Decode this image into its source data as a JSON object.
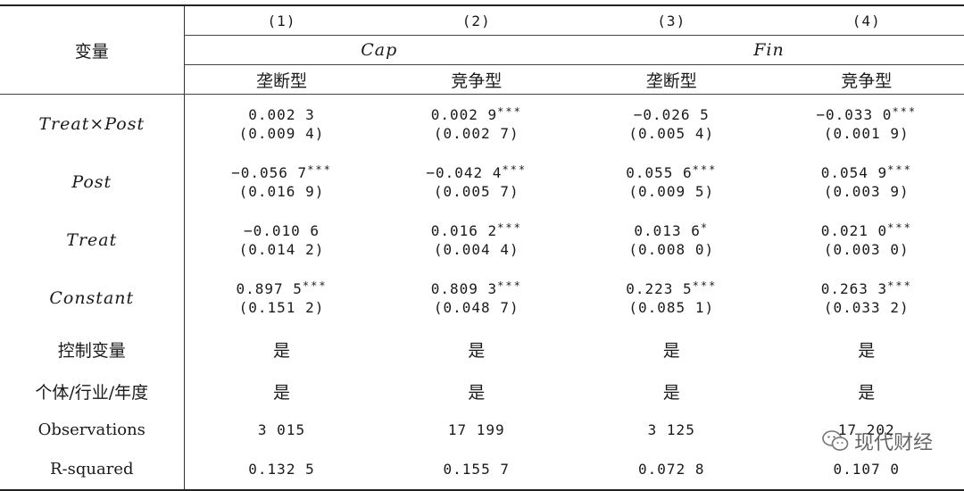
{
  "header": {
    "variable_label": "变量",
    "column_numbers": [
      "(1)",
      "(2)",
      "(3)",
      "(4)"
    ],
    "groups": [
      "Cap",
      "Fin"
    ],
    "subgroups": [
      "垄断型",
      "竞争型",
      "垄断型",
      "竞争型"
    ]
  },
  "coef_rows": [
    {
      "label": "Treat×Post",
      "cells": [
        {
          "value": "0.002 3",
          "stars": "",
          "se": "(0.009 4)"
        },
        {
          "value": "0.002 9",
          "stars": "***",
          "se": "(0.002 7)"
        },
        {
          "value": "−0.026 5",
          "stars": "",
          "se": "(0.005 4)"
        },
        {
          "value": "−0.033 0",
          "stars": "***",
          "se": "(0.001 9)"
        }
      ]
    },
    {
      "label": "Post",
      "cells": [
        {
          "value": "−0.056 7",
          "stars": "***",
          "se": "(0.016 9)"
        },
        {
          "value": "−0.042 4",
          "stars": "***",
          "se": "(0.005 7)"
        },
        {
          "value": "0.055 6",
          "stars": "***",
          "se": "(0.009 5)"
        },
        {
          "value": "0.054 9",
          "stars": "***",
          "se": "(0.003 9)"
        }
      ]
    },
    {
      "label": "Treat",
      "cells": [
        {
          "value": "−0.010 6",
          "stars": "",
          "se": "(0.014 2)"
        },
        {
          "value": "0.016 2",
          "stars": "***",
          "se": "(0.004 4)"
        },
        {
          "value": "0.013 6",
          "stars": "*",
          "se": "(0.008 0)"
        },
        {
          "value": "0.021 0",
          "stars": "***",
          "se": "(0.003 0)"
        }
      ]
    },
    {
      "label": "Constant",
      "cells": [
        {
          "value": "0.897 5",
          "stars": "***",
          "se": "(0.151 2)"
        },
        {
          "value": "0.809 3",
          "stars": "***",
          "se": "(0.048 7)"
        },
        {
          "value": "0.223 5",
          "stars": "***",
          "se": "(0.085 1)"
        },
        {
          "value": "0.263 3",
          "stars": "***",
          "se": "(0.033 2)"
        }
      ]
    }
  ],
  "controls_row": {
    "label": "控制变量",
    "values": [
      "是",
      "是",
      "是",
      "是"
    ]
  },
  "fe_row": {
    "label": "个体/行业/年度",
    "values": [
      "是",
      "是",
      "是",
      "是"
    ]
  },
  "obs_row": {
    "label": "Observations",
    "values": [
      "3 015",
      "17 199",
      "3 125",
      "17 202"
    ]
  },
  "r2_row": {
    "label": "R-squared",
    "values": [
      "0.132 5",
      "0.155 7",
      "0.072 8",
      "0.107 0"
    ]
  },
  "watermark": {
    "text": "现代财经",
    "icon": "wechat-icon"
  }
}
